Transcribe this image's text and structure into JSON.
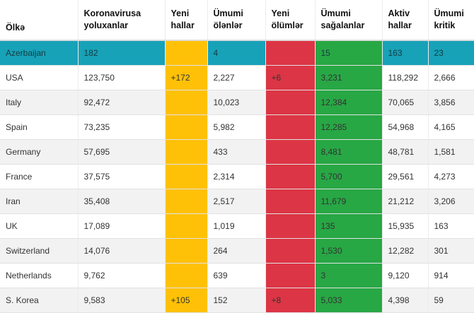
{
  "headers": [
    [
      "Ölkə"
    ],
    [
      "Koronavirusa",
      "yoluxanlar"
    ],
    [
      "Yeni",
      "hallar"
    ],
    [
      "Ümumi",
      "ölənlər"
    ],
    [
      "Yeni",
      "ölümlər"
    ],
    [
      "Ümumi",
      "sağalanlar"
    ],
    [
      "Aktiv",
      "hallar"
    ],
    [
      "Ümumi",
      "kritik"
    ]
  ],
  "column_colors": {
    "new_cases": "#ffc107",
    "new_deaths": "#dc3545",
    "recovered": "#28a745",
    "highlight_row": "#17a2b8"
  },
  "rows": [
    {
      "country": "Azerbaijan",
      "infected": "182",
      "new_cases": "",
      "deaths": "4",
      "new_deaths": "",
      "recovered": "15",
      "active": "163",
      "critical": "23"
    },
    {
      "country": "USA",
      "infected": "123,750",
      "new_cases": "+172",
      "deaths": "2,227",
      "new_deaths": "+6",
      "recovered": "3,231",
      "active": "118,292",
      "critical": "2,666"
    },
    {
      "country": "Italy",
      "infected": "92,472",
      "new_cases": "",
      "deaths": "10,023",
      "new_deaths": "",
      "recovered": "12,384",
      "active": "70,065",
      "critical": "3,856"
    },
    {
      "country": "Spain",
      "infected": "73,235",
      "new_cases": "",
      "deaths": "5,982",
      "new_deaths": "",
      "recovered": "12,285",
      "active": "54,968",
      "critical": "4,165"
    },
    {
      "country": "Germany",
      "infected": "57,695",
      "new_cases": "",
      "deaths": "433",
      "new_deaths": "",
      "recovered": "8,481",
      "active": "48,781",
      "critical": "1,581"
    },
    {
      "country": "France",
      "infected": "37,575",
      "new_cases": "",
      "deaths": "2,314",
      "new_deaths": "",
      "recovered": "5,700",
      "active": "29,561",
      "critical": "4,273"
    },
    {
      "country": "Iran",
      "infected": "35,408",
      "new_cases": "",
      "deaths": "2,517",
      "new_deaths": "",
      "recovered": "11,679",
      "active": "21,212",
      "critical": "3,206"
    },
    {
      "country": "UK",
      "infected": "17,089",
      "new_cases": "",
      "deaths": "1,019",
      "new_deaths": "",
      "recovered": "135",
      "active": "15,935",
      "critical": "163"
    },
    {
      "country": "Switzerland",
      "infected": "14,076",
      "new_cases": "",
      "deaths": "264",
      "new_deaths": "",
      "recovered": "1,530",
      "active": "12,282",
      "critical": "301"
    },
    {
      "country": "Netherlands",
      "infected": "9,762",
      "new_cases": "",
      "deaths": "639",
      "new_deaths": "",
      "recovered": "3",
      "active": "9,120",
      "critical": "914"
    },
    {
      "country": "S. Korea",
      "infected": "9,583",
      "new_cases": "+105",
      "deaths": "152",
      "new_deaths": "+8",
      "recovered": "5,033",
      "active": "4,398",
      "critical": "59"
    }
  ]
}
